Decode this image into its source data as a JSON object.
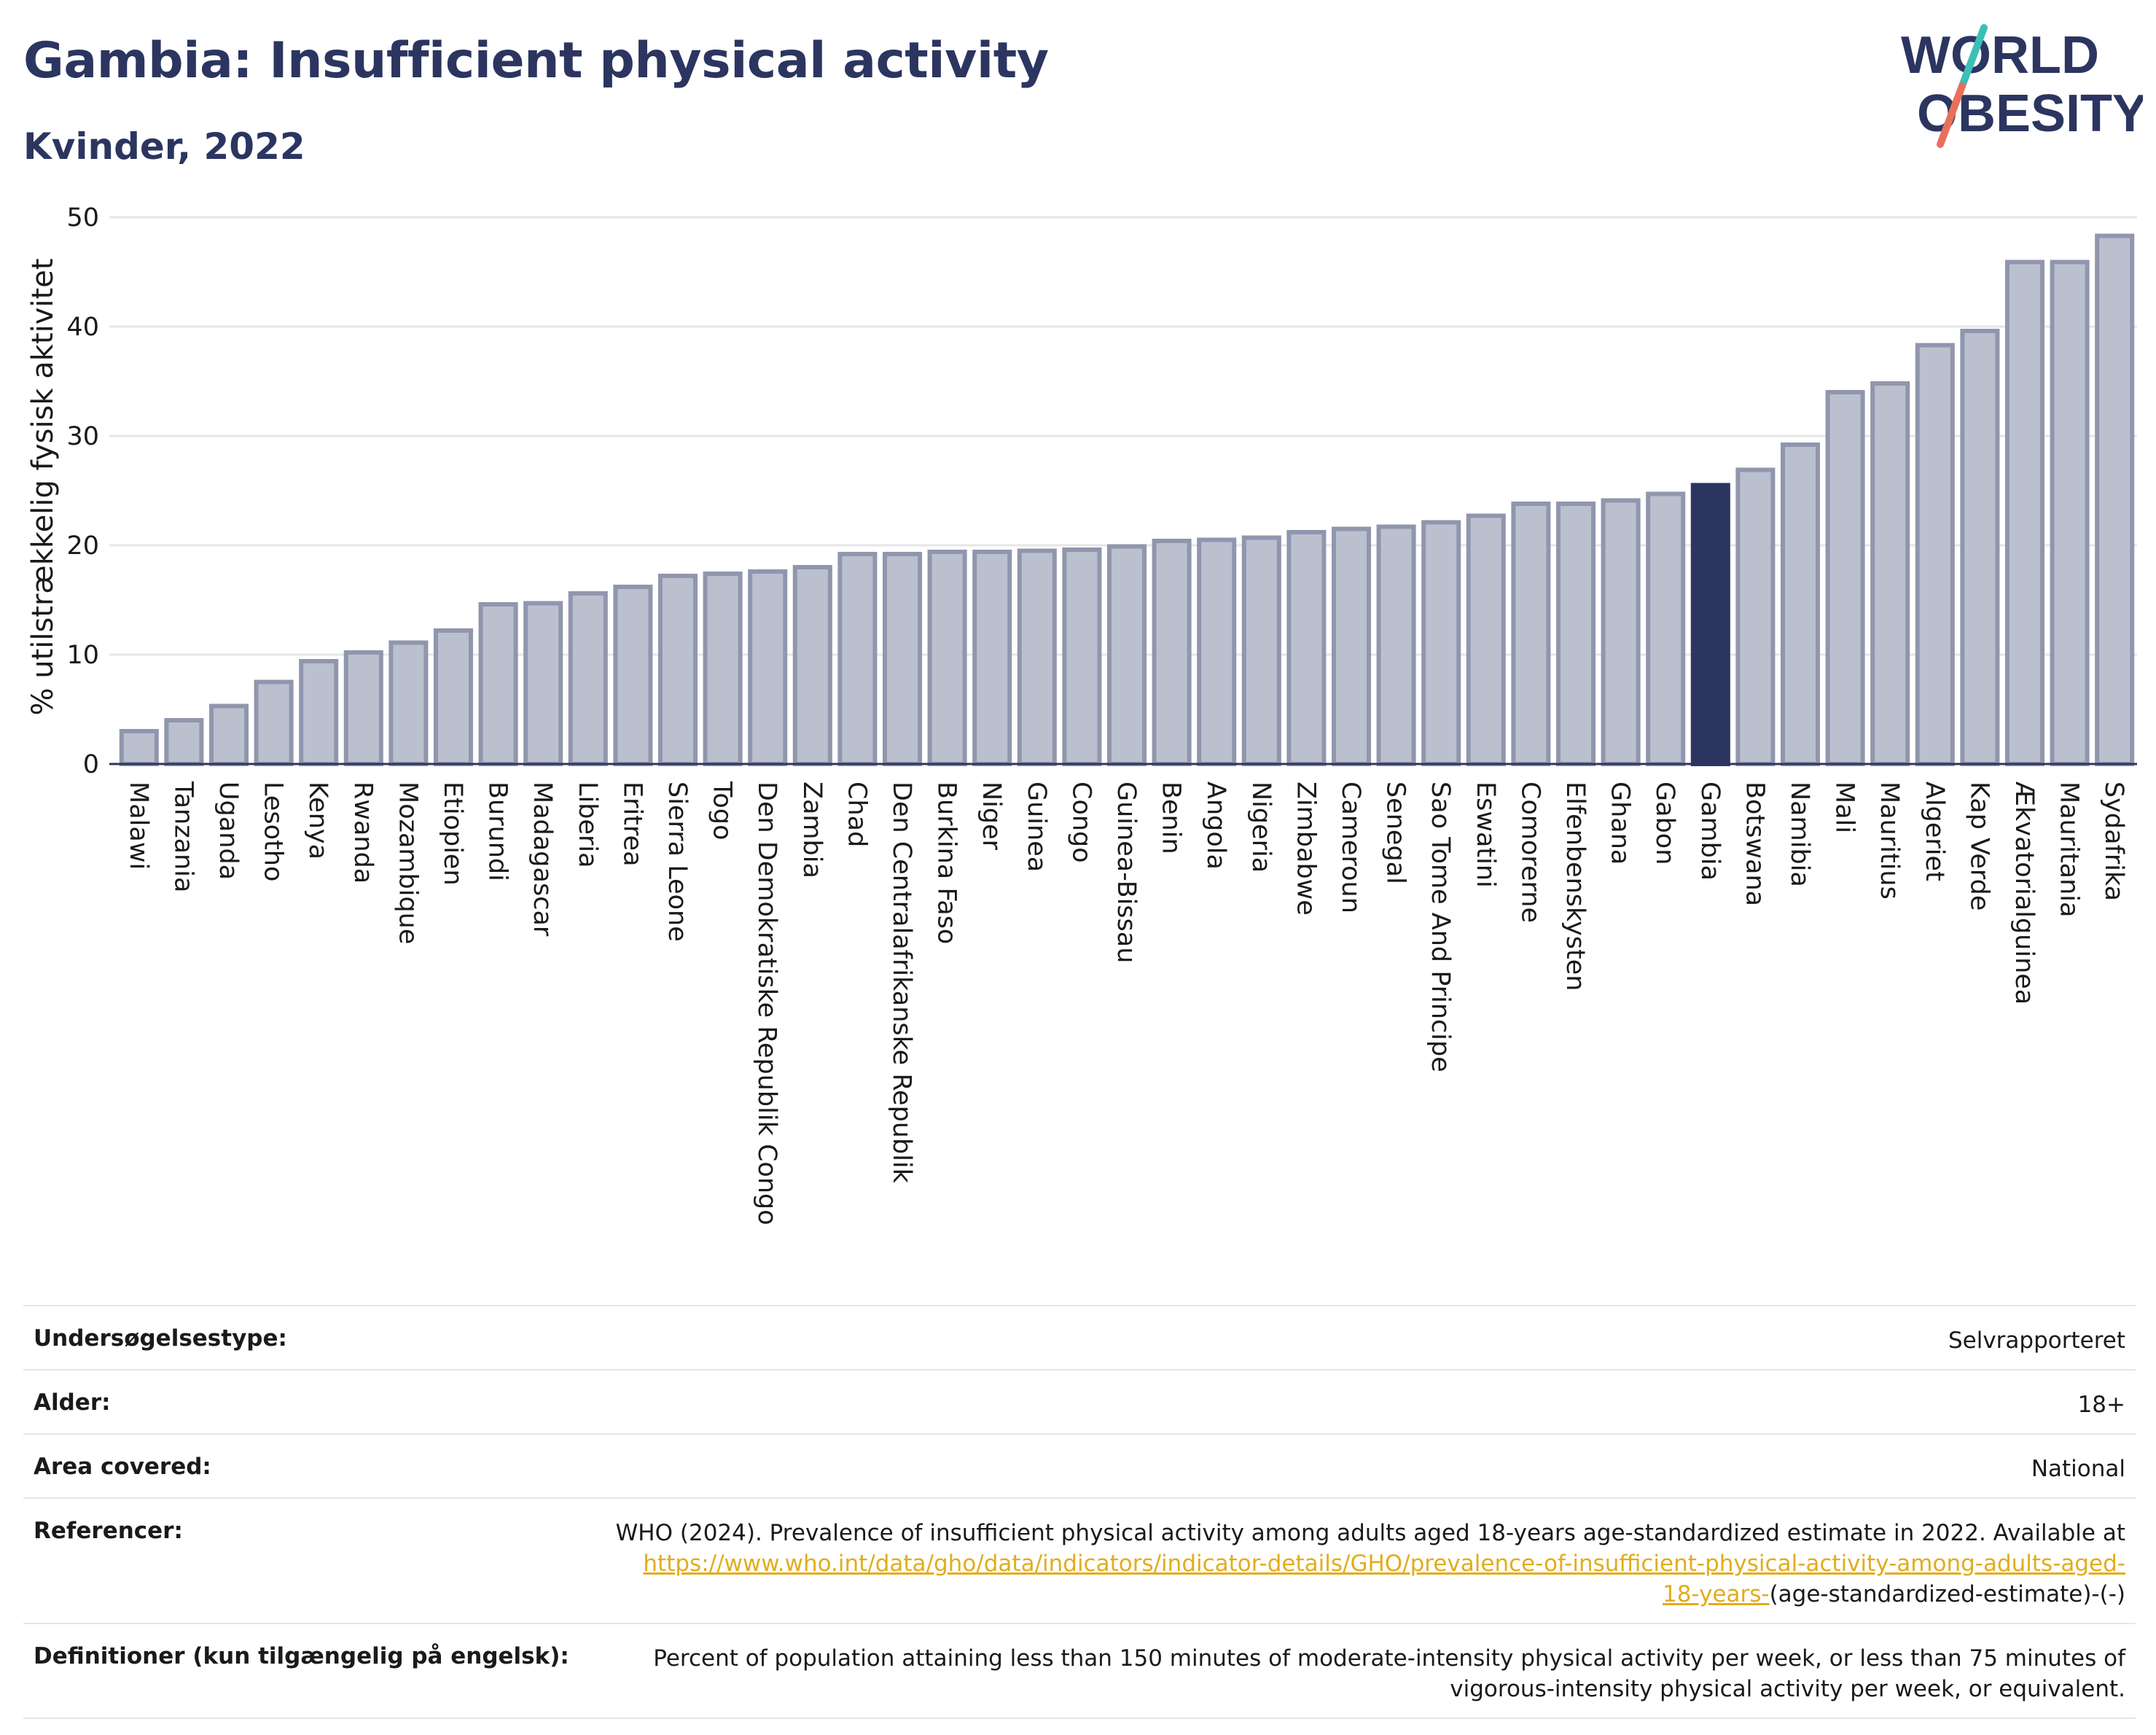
{
  "header": {
    "title": "Gambia: Insufficient physical activity",
    "subtitle": "Kvinder, 2022"
  },
  "logo": {
    "line1": "WORLD",
    "line2": "OBESITY",
    "text_color": "#2b3560",
    "slash_colors": [
      "#3bbfb8",
      "#e8705a"
    ]
  },
  "colors": {
    "bar_default": "#bbc0cf",
    "bar_border": "#9096ad",
    "bar_highlight": "#2b3560",
    "gridline": "#e6e6e6",
    "link": "#e2ac1c"
  },
  "chart_data": {
    "type": "bar",
    "ylabel": "% utilstrækkelig fysisk aktivitet",
    "ylim": [
      0,
      50
    ],
    "yticks": [
      0,
      10,
      20,
      30,
      40,
      50
    ],
    "grid": true,
    "highlight": "Gambia",
    "categories": [
      "Malawi",
      "Tanzania",
      "Uganda",
      "Lesotho",
      "Kenya",
      "Rwanda",
      "Mozambique",
      "Etiopien",
      "Burundi",
      "Madagascar",
      "Liberia",
      "Eritrea",
      "Sierra Leone",
      "Togo",
      "Den Demokratiske Republik Congo",
      "Zambia",
      "Chad",
      "Den Centralafrikanske Republik",
      "Burkina Faso",
      "Niger",
      "Guinea",
      "Congo",
      "Guinea-Bissau",
      "Benin",
      "Angola",
      "Nigeria",
      "Zimbabwe",
      "Cameroun",
      "Senegal",
      "Sao Tome And Principe",
      "Eswatini",
      "Comorerne",
      "Elfenbenskysten",
      "Ghana",
      "Gabon",
      "Gambia",
      "Botswana",
      "Namibia",
      "Mali",
      "Mauritius",
      "Algeriet",
      "Kap Verde",
      "Ækvatorialguinea",
      "Mauritania",
      "Sydafrika"
    ],
    "values": [
      3.0,
      4.0,
      5.3,
      7.5,
      9.4,
      10.2,
      11.1,
      12.2,
      14.6,
      14.7,
      15.6,
      16.2,
      17.2,
      17.4,
      17.6,
      18.0,
      19.2,
      19.2,
      19.4,
      19.4,
      19.5,
      19.6,
      19.9,
      20.4,
      20.5,
      20.7,
      21.2,
      21.5,
      21.7,
      22.1,
      22.7,
      23.8,
      23.8,
      24.1,
      24.7,
      25.5,
      26.9,
      29.2,
      34.0,
      34.8,
      38.3,
      39.6,
      45.9,
      45.9,
      48.3
    ]
  },
  "info": {
    "rows": [
      {
        "label": "Undersøgelsestype:",
        "value": "Selvrapporteret"
      },
      {
        "label": "Alder:",
        "value": "18+"
      },
      {
        "label": "Area covered:",
        "value": "National"
      }
    ],
    "references": {
      "label": "Referencer:",
      "text": "WHO (2024). Prevalence of insufficient physical activity among adults aged 18-years age-standardized estimate in 2022. Available at ",
      "link_line1": "https://www.who.int/data/gho/data/indicators/indicator-details/GHO/prevalence-of-insufficient-physical-activity-among-adults-aged-",
      "link_line2": "18-years-",
      "suffix": "(age-standardized-estimate)-(-)"
    },
    "definitions": {
      "label": "Definitioner (kun tilgængelig på engelsk):",
      "text": "Percent of population attaining less than 150 minutes of moderate-intensity physical activity per week, or less than 75 minutes of vigorous-intensity physical activity per week, or equivalent."
    }
  }
}
